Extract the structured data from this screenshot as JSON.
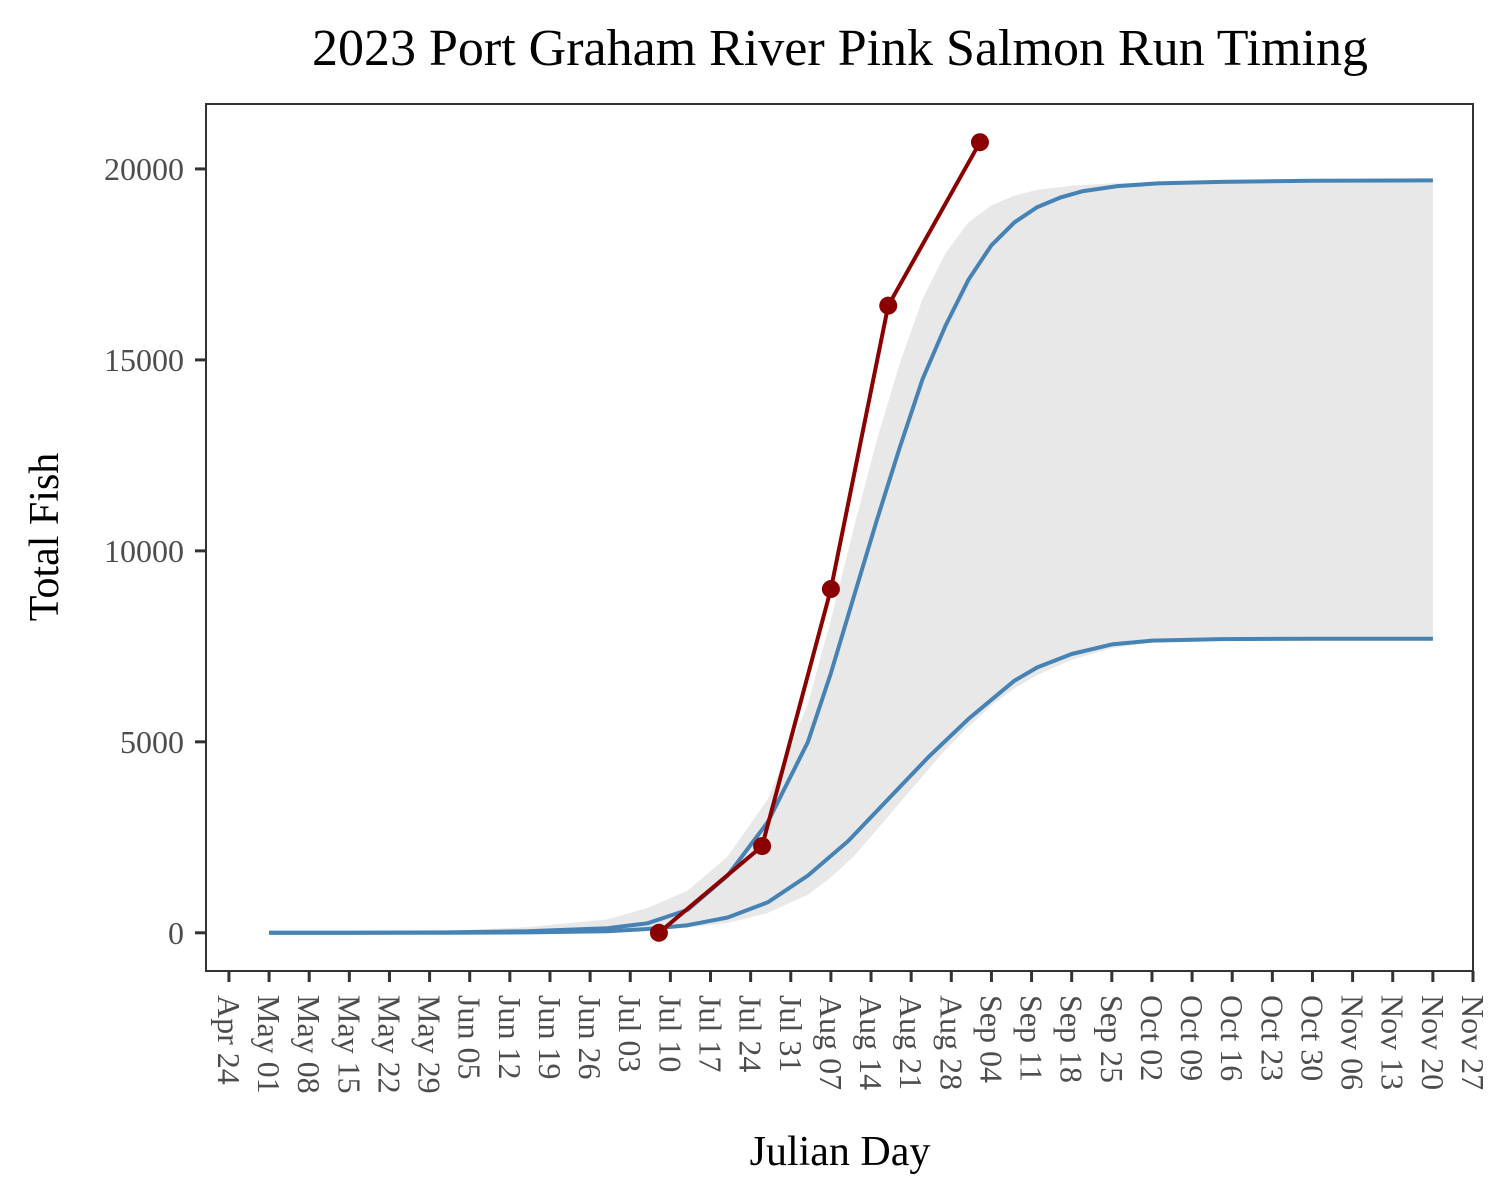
{
  "chart_data": {
    "type": "line",
    "title": "2023 Port Graham River Pink Salmon Run Timing",
    "xlabel": "Julian Day",
    "ylabel": "Total Fish",
    "x_is_date": true,
    "xlim": [
      "2023-04-20",
      "2023-11-27"
    ],
    "ylim": [
      -1000,
      21700
    ],
    "x_ticks": [
      "2023-04-24",
      "2023-05-01",
      "2023-05-08",
      "2023-05-15",
      "2023-05-22",
      "2023-05-29",
      "2023-06-05",
      "2023-06-12",
      "2023-06-19",
      "2023-06-26",
      "2023-07-03",
      "2023-07-10",
      "2023-07-17",
      "2023-07-24",
      "2023-07-31",
      "2023-08-07",
      "2023-08-14",
      "2023-08-21",
      "2023-08-28",
      "2023-09-04",
      "2023-09-11",
      "2023-09-18",
      "2023-09-25",
      "2023-10-02",
      "2023-10-09",
      "2023-10-16",
      "2023-10-23",
      "2023-10-30",
      "2023-11-06",
      "2023-11-13",
      "2023-11-20",
      "2023-11-27"
    ],
    "x_tick_labels": [
      "Apr 24",
      "May 01",
      "May 08",
      "May 15",
      "May 22",
      "May 29",
      "Jun 05",
      "Jun 12",
      "Jun 19",
      "Jun 26",
      "Jul 03",
      "Jul 10",
      "Jul 17",
      "Jul 24",
      "Jul 31",
      "Aug 07",
      "Aug 14",
      "Aug 21",
      "Aug 28",
      "Sep 04",
      "Sep 11",
      "Sep 18",
      "Sep 25",
      "Oct 02",
      "Oct 09",
      "Oct 16",
      "Oct 23",
      "Oct 30",
      "Nov 06",
      "Nov 13",
      "Nov 20",
      "Nov 27"
    ],
    "y_ticks": [
      0,
      5000,
      10000,
      15000,
      20000
    ],
    "y_tick_labels": [
      "0",
      "5000",
      "10000",
      "15000",
      "20000"
    ],
    "grid": false,
    "series": [
      {
        "kind": "points_line",
        "color": "#8b0000",
        "x": [
          "2023-07-08",
          "2023-07-26",
          "2023-08-07",
          "2023-08-17",
          "2023-09-02"
        ],
        "y": [
          0,
          2270,
          9000,
          16420,
          20700
        ]
      },
      {
        "kind": "line",
        "color": "#4682b4",
        "x": [
          "2023-05-01",
          "2023-05-15",
          "2023-06-01",
          "2023-06-15",
          "2023-06-29",
          "2023-07-06",
          "2023-07-13",
          "2023-07-20",
          "2023-07-27",
          "2023-08-03",
          "2023-08-07",
          "2023-08-11",
          "2023-08-15",
          "2023-08-19",
          "2023-08-23",
          "2023-08-27",
          "2023-08-31",
          "2023-09-04",
          "2023-09-08",
          "2023-09-12",
          "2023-09-16",
          "2023-09-20",
          "2023-09-26",
          "2023-10-03",
          "2023-10-14",
          "2023-10-30",
          "2023-11-20"
        ],
        "y": [
          0,
          0,
          10,
          40,
          120,
          250,
          600,
          1500,
          2900,
          5000,
          6800,
          8800,
          10800,
          12700,
          14500,
          15900,
          17100,
          18000,
          18600,
          19000,
          19250,
          19420,
          19550,
          19620,
          19660,
          19690,
          19700
        ]
      },
      {
        "kind": "line",
        "color": "#4682b4",
        "x": [
          "2023-05-01",
          "2023-05-15",
          "2023-06-01",
          "2023-06-15",
          "2023-06-29",
          "2023-07-06",
          "2023-07-13",
          "2023-07-20",
          "2023-07-27",
          "2023-08-03",
          "2023-08-10",
          "2023-08-17",
          "2023-08-24",
          "2023-08-31",
          "2023-09-04",
          "2023-09-08",
          "2023-09-12",
          "2023-09-18",
          "2023-09-25",
          "2023-10-02",
          "2023-10-14",
          "2023-10-30",
          "2023-11-20"
        ],
        "y": [
          0,
          0,
          0,
          10,
          40,
          100,
          200,
          400,
          800,
          1500,
          2400,
          3500,
          4600,
          5600,
          6100,
          6600,
          6950,
          7300,
          7550,
          7650,
          7690,
          7700,
          7700
        ]
      }
    ],
    "band": {
      "fill": "#e8e8e8",
      "x": [
        "2023-05-01",
        "2023-05-15",
        "2023-06-01",
        "2023-06-15",
        "2023-06-29",
        "2023-07-06",
        "2023-07-13",
        "2023-07-20",
        "2023-07-27",
        "2023-08-03",
        "2023-08-07",
        "2023-08-11",
        "2023-08-15",
        "2023-08-19",
        "2023-08-23",
        "2023-08-27",
        "2023-08-31",
        "2023-09-04",
        "2023-09-08",
        "2023-09-12",
        "2023-09-18",
        "2023-09-25",
        "2023-10-02",
        "2023-10-14",
        "2023-10-30",
        "2023-11-20"
      ],
      "upper": [
        0,
        10,
        50,
        150,
        350,
        650,
        1100,
        2000,
        3500,
        6000,
        8200,
        10600,
        12900,
        14900,
        16600,
        17800,
        18600,
        19050,
        19300,
        19450,
        19560,
        19620,
        19660,
        19690,
        19700,
        19700
      ],
      "lower": [
        0,
        0,
        0,
        5,
        20,
        60,
        130,
        260,
        520,
        1000,
        1450,
        2000,
        2700,
        3400,
        4100,
        4800,
        5400,
        5950,
        6400,
        6750,
        7150,
        7450,
        7600,
        7680,
        7700,
        7700
      ]
    }
  }
}
